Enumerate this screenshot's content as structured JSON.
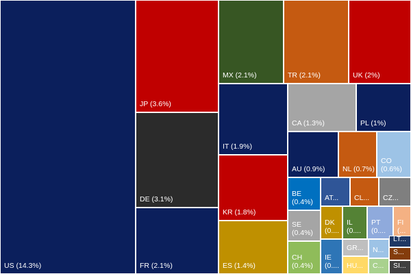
{
  "chart_data": {
    "type": "treemap",
    "title": "",
    "tiles": [
      {
        "label": "US (14.3%)",
        "color": "#0b1f5c"
      },
      {
        "label": "JP (3.6%)",
        "color": "#c00000"
      },
      {
        "label": "DE (3.1%)",
        "color": "#2b2b2b"
      },
      {
        "label": "FR (2.1%)",
        "color": "#0b1f5c"
      },
      {
        "label": "MX (2.1%)",
        "color": "#375623"
      },
      {
        "label": "TR (2.1%)",
        "color": "#c55a11"
      },
      {
        "label": "UK (2%)",
        "color": "#c00000"
      },
      {
        "label": "IT (1.9%)",
        "color": "#0b1f5c"
      },
      {
        "label": "CA (1.3%)",
        "color": "#a5a5a5"
      },
      {
        "label": "PL (1%)",
        "color": "#0b1f5c"
      },
      {
        "label": "KR (1.8%)",
        "color": "#c00000"
      },
      {
        "label": "ES (1.4%)",
        "color": "#bf9000"
      },
      {
        "label": "AU (0.9%)",
        "color": "#0b1f5c"
      },
      {
        "label": "NL (0.7%)",
        "color": "#c55a11"
      },
      {
        "label": "CO\n(0.6%)",
        "color": "#9dc3e6"
      },
      {
        "label": "BE\n(0.4%)",
        "color": "#0070c0"
      },
      {
        "label": "AT...",
        "color": "#2f5597"
      },
      {
        "label": "CL...",
        "color": "#c55a11"
      },
      {
        "label": "CZ...",
        "color": "#7f7f7f"
      },
      {
        "label": "SE\n(0.4%)",
        "color": "#a5a5a5"
      },
      {
        "label": "DK\n(0....",
        "color": "#bf9000"
      },
      {
        "label": "IL\n(0....",
        "color": "#548235"
      },
      {
        "label": "PT\n(0....",
        "color": "#8faadc"
      },
      {
        "label": "FI\n(...",
        "color": "#f4b183"
      },
      {
        "label": "CH\n(0.4%)",
        "color": "#8fbc5a"
      },
      {
        "label": "IE\n(0....",
        "color": "#2e75b6"
      },
      {
        "label": "GR...",
        "color": "#bfbfbf"
      },
      {
        "label": "HU...",
        "color": "#ffd966"
      },
      {
        "label": "N...",
        "color": "#9dc3e6"
      },
      {
        "label": "C...",
        "color": "#a9d18e"
      },
      {
        "label": "LT...",
        "color": "#1f3864"
      },
      {
        "label": "S...",
        "color": "#843c0c"
      },
      {
        "label": "SI...",
        "color": "#404040"
      }
    ]
  }
}
